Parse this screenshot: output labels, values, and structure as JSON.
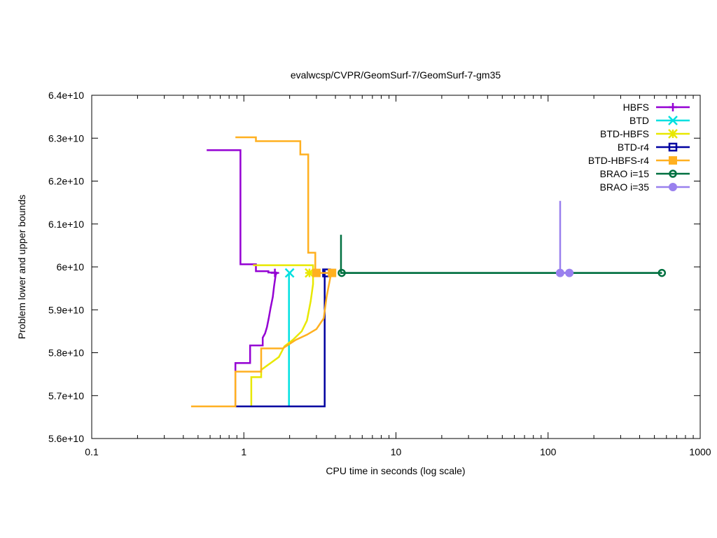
{
  "chart_data": {
    "type": "line",
    "title": "evalwcsp/CVPR/GeomSurf-7/GeomSurf-7-gm35",
    "xlabel": "CPU time in seconds (log scale)",
    "ylabel": "Problem lower and upper bounds",
    "x_scale": "log",
    "xlim": [
      0.1,
      1000
    ],
    "ylim": [
      56000000000,
      64000000000
    ],
    "x_ticks": [
      0.1,
      1,
      10,
      100,
      1000
    ],
    "x_tick_labels": [
      "0.1",
      "1",
      "10",
      "100",
      "1000"
    ],
    "y_ticks": [
      56000000000,
      57000000000,
      58000000000,
      59000000000,
      60000000000,
      61000000000,
      62000000000,
      63000000000,
      64000000000
    ],
    "y_tick_labels": [
      "5.6e+10",
      "5.7e+10",
      "5.8e+10",
      "5.9e+10",
      "6e+10",
      "6.1e+10",
      "6.2e+10",
      "6.3e+10",
      "6.4e+10"
    ],
    "grid": false,
    "legend_position": "top-right",
    "series": [
      {
        "name": "HBFS",
        "color": "#9400d3",
        "marker": "plus",
        "upper": [
          [
            0.57,
            62720000000
          ],
          [
            0.95,
            62720000000
          ],
          [
            0.95,
            60060000000
          ],
          [
            1.2,
            60060000000
          ],
          [
            1.2,
            59900000000
          ],
          [
            1.45,
            59900000000
          ],
          [
            1.45,
            59870000000
          ],
          [
            1.65,
            59870000000
          ]
        ],
        "lower": [
          [
            0.88,
            56750000000
          ],
          [
            0.88,
            57760000000
          ],
          [
            1.1,
            57760000000
          ],
          [
            1.1,
            58170000000
          ],
          [
            1.33,
            58170000000
          ],
          [
            1.33,
            58350000000
          ],
          [
            1.38,
            58450000000
          ],
          [
            1.42,
            58600000000
          ],
          [
            1.46,
            58820000000
          ],
          [
            1.5,
            59050000000
          ],
          [
            1.55,
            59300000000
          ],
          [
            1.58,
            59550000000
          ],
          [
            1.62,
            59820000000
          ],
          [
            1.65,
            59860000000
          ]
        ],
        "markers": [
          [
            1.6,
            59860000000
          ]
        ]
      },
      {
        "name": "BTD",
        "color": "#00e0e0",
        "marker": "cross",
        "upper": [
          [
            1.98,
            59860000000
          ],
          [
            2.05,
            59860000000
          ]
        ],
        "lower": [
          [
            1.98,
            56750000000
          ],
          [
            1.98,
            59860000000
          ]
        ],
        "markers": [
          [
            2.0,
            59860000000
          ]
        ]
      },
      {
        "name": "BTD-HBFS",
        "color": "#e8e800",
        "marker": "star",
        "upper": [
          [
            1.15,
            60040000000
          ],
          [
            2.85,
            60040000000
          ],
          [
            2.85,
            59860000000
          ]
        ],
        "lower": [
          [
            1.12,
            56750000000
          ],
          [
            1.12,
            57430000000
          ],
          [
            1.3,
            57430000000
          ],
          [
            1.3,
            57600000000
          ],
          [
            1.5,
            57760000000
          ],
          [
            1.7,
            57900000000
          ],
          [
            1.85,
            58150000000
          ],
          [
            2.1,
            58300000000
          ],
          [
            2.4,
            58500000000
          ],
          [
            2.6,
            58750000000
          ],
          [
            2.75,
            59200000000
          ],
          [
            2.85,
            59600000000
          ],
          [
            2.85,
            59860000000
          ]
        ],
        "markers": [
          [
            2.7,
            59860000000
          ]
        ]
      },
      {
        "name": "BTD-r4",
        "color": "#0000a0",
        "marker": "square",
        "upper": [
          [
            3.4,
            59920000000
          ],
          [
            3.4,
            59860000000
          ],
          [
            3.6,
            59860000000
          ]
        ],
        "lower": [
          [
            0.88,
            56750000000
          ],
          [
            3.4,
            56750000000
          ],
          [
            3.4,
            59860000000
          ]
        ],
        "markers": [
          [
            3.5,
            59860000000
          ]
        ]
      },
      {
        "name": "BTD-HBFS-r4",
        "color": "#ffb020",
        "marker": "filled-square",
        "upper": [
          [
            0.88,
            63020000000
          ],
          [
            1.2,
            63020000000
          ],
          [
            1.2,
            62930000000
          ],
          [
            2.35,
            62930000000
          ],
          [
            2.35,
            62620000000
          ],
          [
            2.65,
            62620000000
          ],
          [
            2.65,
            60330000000
          ],
          [
            2.95,
            60330000000
          ],
          [
            2.95,
            59860000000
          ],
          [
            3.8,
            59860000000
          ]
        ],
        "lower": [
          [
            0.45,
            56750000000
          ],
          [
            0.88,
            56750000000
          ],
          [
            0.88,
            57560000000
          ],
          [
            1.3,
            57560000000
          ],
          [
            1.3,
            58100000000
          ],
          [
            1.8,
            58100000000
          ],
          [
            2.2,
            58300000000
          ],
          [
            2.6,
            58420000000
          ],
          [
            3.0,
            58550000000
          ],
          [
            3.35,
            58800000000
          ],
          [
            3.5,
            59300000000
          ],
          [
            3.75,
            59860000000
          ]
        ],
        "markers": [
          [
            3.0,
            59860000000
          ],
          [
            3.8,
            59860000000
          ]
        ]
      },
      {
        "name": "BRAO i=15",
        "color": "#007040",
        "marker": "circle",
        "upper": [
          [
            4.35,
            60750000000
          ],
          [
            4.35,
            59860000000
          ],
          [
            560,
            59860000000
          ]
        ],
        "lower": [
          [
            4.35,
            59860000000
          ],
          [
            560,
            59860000000
          ]
        ],
        "markers": [
          [
            4.4,
            59860000000
          ],
          [
            560,
            59860000000
          ]
        ]
      },
      {
        "name": "BRAO i=35",
        "color": "#9980ee",
        "marker": "filled-circle",
        "upper": [
          [
            120,
            61540000000
          ],
          [
            120,
            59860000000
          ],
          [
            138,
            59860000000
          ]
        ],
        "lower": [
          [
            120,
            59860000000
          ],
          [
            138,
            59860000000
          ]
        ],
        "markers": [
          [
            120,
            59860000000
          ],
          [
            138,
            59860000000
          ]
        ]
      }
    ]
  }
}
